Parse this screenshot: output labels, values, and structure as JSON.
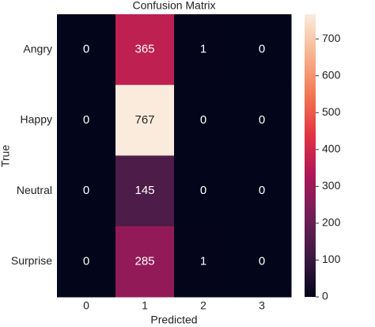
{
  "chart_data": {
    "type": "heatmap",
    "title": "Confusion Matrix",
    "xlabel": "Predicted",
    "ylabel": "True",
    "x_categories": [
      "0",
      "1",
      "2",
      "3"
    ],
    "y_categories": [
      "Angry",
      "Happy",
      "Neutral",
      "Surprise"
    ],
    "values": [
      [
        0,
        365,
        1,
        0
      ],
      [
        0,
        767,
        0,
        0
      ],
      [
        0,
        145,
        0,
        0
      ],
      [
        0,
        285,
        1,
        0
      ]
    ],
    "colormap": [
      "#03051a",
      "#3d1a42",
      "#701f57",
      "#ab1759",
      "#e13342",
      "#f37651",
      "#f6b48e",
      "#faebdd"
    ],
    "clim": [
      0,
      767
    ],
    "cticks": [
      0,
      100,
      200,
      300,
      400,
      500,
      600,
      700
    ]
  }
}
